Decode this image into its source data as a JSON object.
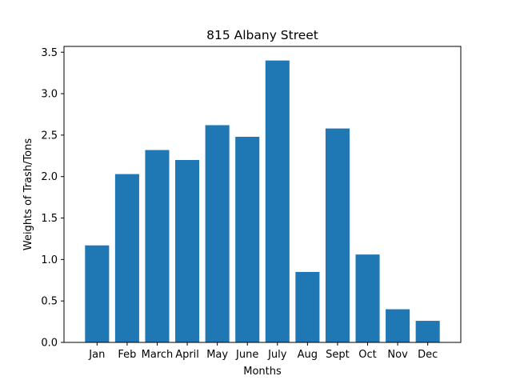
{
  "chart_data": {
    "type": "bar",
    "title": "815 Albany Street",
    "xlabel": "Months",
    "ylabel": "Weights of Trash/Tons",
    "categories": [
      "Jan",
      "Feb",
      "March",
      "April",
      "May",
      "June",
      "July",
      "Aug",
      "Sept",
      "Oct",
      "Nov",
      "Dec"
    ],
    "values": [
      1.17,
      2.03,
      2.32,
      2.2,
      2.62,
      2.48,
      3.4,
      0.85,
      2.58,
      1.06,
      0.4,
      0.26
    ],
    "ylim": [
      0,
      3.57
    ],
    "yticks": [
      0.0,
      0.5,
      1.0,
      1.5,
      2.0,
      2.5,
      3.0,
      3.5
    ],
    "ytick_labels": [
      "0.0",
      "0.5",
      "1.0",
      "1.5",
      "2.0",
      "2.5",
      "3.0",
      "3.5"
    ],
    "bar_color": "#1f77b4",
    "grid": false,
    "legend": "none"
  }
}
